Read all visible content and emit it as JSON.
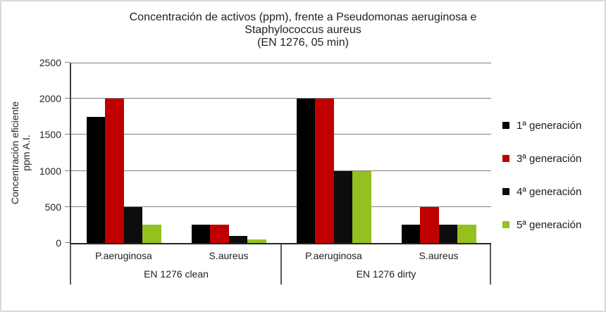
{
  "chart_data": {
    "type": "bar",
    "title": "Concentración de activos (ppm), frente a Pseudomonas aeruginosa e Staphylococcus aureus (EN 1276, 05 min)",
    "title_lines": [
      "Concentración de activos (ppm), frente a Pseudomonas aeruginosa e",
      "Staphylococcus aureus",
      "(EN 1276, 05 min)"
    ],
    "ylabel": "Concentración eficiente ppm A.I.",
    "ylabel_lines": [
      "Concentración eficiente",
      "ppm A.I."
    ],
    "xlabel": "",
    "ylim": [
      0,
      2500
    ],
    "yticks": [
      0,
      500,
      1000,
      1500,
      2000,
      2500
    ],
    "grid": true,
    "grid_color": "#7f7f7f",
    "axis_color": "#262626",
    "legend_position": "right",
    "groups": [
      {
        "group_label": "EN 1276 clean",
        "categories": [
          "P.aeruginosa",
          "S.aureus"
        ]
      },
      {
        "group_label": "EN 1276 dirty",
        "categories": [
          "P.aeruginosa",
          "S.aureus"
        ]
      }
    ],
    "category_order": [
      "EN 1276 clean / P.aeruginosa",
      "EN 1276 clean / S.aureus",
      "EN 1276 dirty / P.aeruginosa",
      "EN 1276 dirty / S.aureus"
    ],
    "series": [
      {
        "name": "1ª generación",
        "color": "#000000",
        "values": [
          1750,
          250,
          2000,
          250
        ]
      },
      {
        "name": "3ª generación",
        "color": "#c00000",
        "values": [
          2000,
          250,
          2000,
          500
        ]
      },
      {
        "name": "4ª generación",
        "color": "#0d0d0d",
        "values": [
          500,
          100,
          1000,
          250
        ]
      },
      {
        "name": "5ª generación",
        "color": "#94c11f",
        "values": [
          250,
          50,
          1000,
          250
        ]
      }
    ]
  }
}
